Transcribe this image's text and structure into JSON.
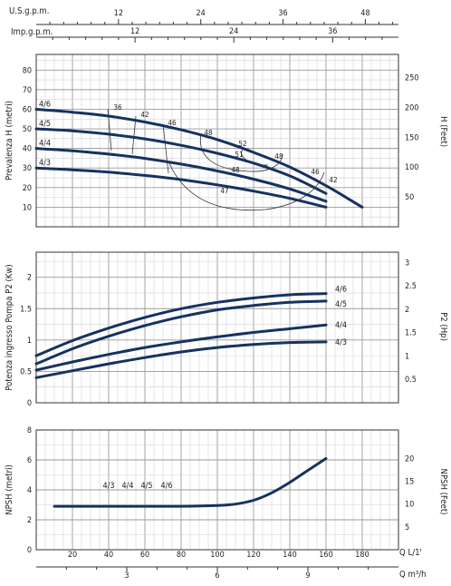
{
  "chart_data": [
    {
      "type": "line",
      "panel": "head",
      "ylabel": "Prevalenza H (metri)",
      "ylabel_right": "H (Feet)",
      "ylim": [
        0,
        88
      ],
      "yticks": [
        "10",
        "20",
        "30",
        "40",
        "50",
        "60",
        "70",
        "80"
      ],
      "yticks_right": [
        "50",
        "100",
        "150",
        "200",
        "250"
      ],
      "top_axes": [
        {
          "label": "U.S.g.p.m.",
          "ticks": [
            "12",
            "24",
            "36",
            "48"
          ]
        },
        {
          "label": "Imp.g.p.m.",
          "ticks": [
            "12",
            "24",
            "36"
          ]
        }
      ],
      "series": [
        {
          "name": "4/6",
          "x": [
            0,
            20,
            40,
            60,
            80,
            100,
            120,
            140,
            160,
            180
          ],
          "y": [
            60,
            58.5,
            56.5,
            53.5,
            49.5,
            44.5,
            38,
            30.5,
            21,
            10
          ]
        },
        {
          "name": "4/5",
          "x": [
            0,
            20,
            40,
            60,
            80,
            100,
            120,
            140,
            160
          ],
          "y": [
            50,
            49,
            47.3,
            44.9,
            41.6,
            37.5,
            32.5,
            26,
            17
          ]
        },
        {
          "name": "4/4",
          "x": [
            0,
            20,
            40,
            60,
            80,
            100,
            120,
            140,
            160
          ],
          "y": [
            40,
            38.8,
            37.1,
            34.9,
            32,
            28.5,
            24.3,
            19.3,
            13
          ]
        },
        {
          "name": "4/3",
          "x": [
            0,
            20,
            40,
            60,
            80,
            100,
            120,
            140,
            160
          ],
          "y": [
            30,
            29.1,
            27.9,
            26.2,
            24.1,
            21.4,
            18.2,
            14.5,
            10
          ]
        }
      ],
      "efficiency_labels": [
        "36",
        "42",
        "46",
        "48",
        "52",
        "51",
        "48",
        "48",
        "46",
        "42",
        "47"
      ]
    },
    {
      "type": "line",
      "panel": "power",
      "ylabel": "Potenza ingresso Pompa P2 (Kw)",
      "ylabel_right": "P2 (Hp)",
      "ylim": [
        0,
        2.4
      ],
      "yticks": [
        "0",
        "0.5",
        "1",
        "1.5",
        "2"
      ],
      "yticks_right": [
        "0.5",
        "1",
        "1.5",
        "2",
        "2.5",
        "3"
      ],
      "series": [
        {
          "name": "4/6",
          "x": [
            0,
            20,
            40,
            60,
            80,
            100,
            120,
            140,
            160
          ],
          "y": [
            0.75,
            0.99,
            1.19,
            1.36,
            1.5,
            1.6,
            1.67,
            1.72,
            1.74
          ]
        },
        {
          "name": "4/5",
          "x": [
            0,
            20,
            40,
            60,
            80,
            100,
            120,
            140,
            160
          ],
          "y": [
            0.62,
            0.86,
            1.06,
            1.23,
            1.37,
            1.48,
            1.55,
            1.6,
            1.62
          ]
        },
        {
          "name": "4/4",
          "x": [
            0,
            20,
            40,
            60,
            80,
            100,
            120,
            140,
            160
          ],
          "y": [
            0.52,
            0.65,
            0.77,
            0.88,
            0.97,
            1.05,
            1.12,
            1.18,
            1.24
          ]
        },
        {
          "name": "4/3",
          "x": [
            0,
            20,
            40,
            60,
            80,
            100,
            120,
            140,
            160
          ],
          "y": [
            0.4,
            0.51,
            0.62,
            0.72,
            0.81,
            0.88,
            0.93,
            0.96,
            0.97
          ]
        }
      ]
    },
    {
      "type": "line",
      "panel": "npsh",
      "ylabel": "NPSH (metri)",
      "ylabel_right": "NPSH (Feet)",
      "ylim": [
        0,
        8
      ],
      "yticks": [
        "0",
        "2",
        "4",
        "6",
        "8"
      ],
      "yticks_right": [
        "5",
        "10",
        "15",
        "20"
      ],
      "series_labels": [
        "4/3",
        "4/4",
        "4/5",
        "4/6"
      ],
      "series": [
        {
          "name": "4/3 4/4 4/5 4/6",
          "x": [
            10,
            40,
            80,
            100,
            110,
            120,
            130,
            140,
            150,
            160
          ],
          "y": [
            2.9,
            2.9,
            2.9,
            2.95,
            3.05,
            3.3,
            3.8,
            4.5,
            5.3,
            6.1
          ]
        }
      ]
    }
  ],
  "bottom_axes": [
    {
      "label": "Q L/1'",
      "ticks": [
        "20",
        "40",
        "60",
        "80",
        "100",
        "120",
        "140",
        "160",
        "180"
      ]
    },
    {
      "label": "Q m³/h",
      "ticks": [
        "3",
        "6",
        "9"
      ]
    }
  ],
  "colors": {
    "curve": "#16325f",
    "grid_major": "#9a9a9a",
    "grid_minor": "#d2d2d2"
  }
}
